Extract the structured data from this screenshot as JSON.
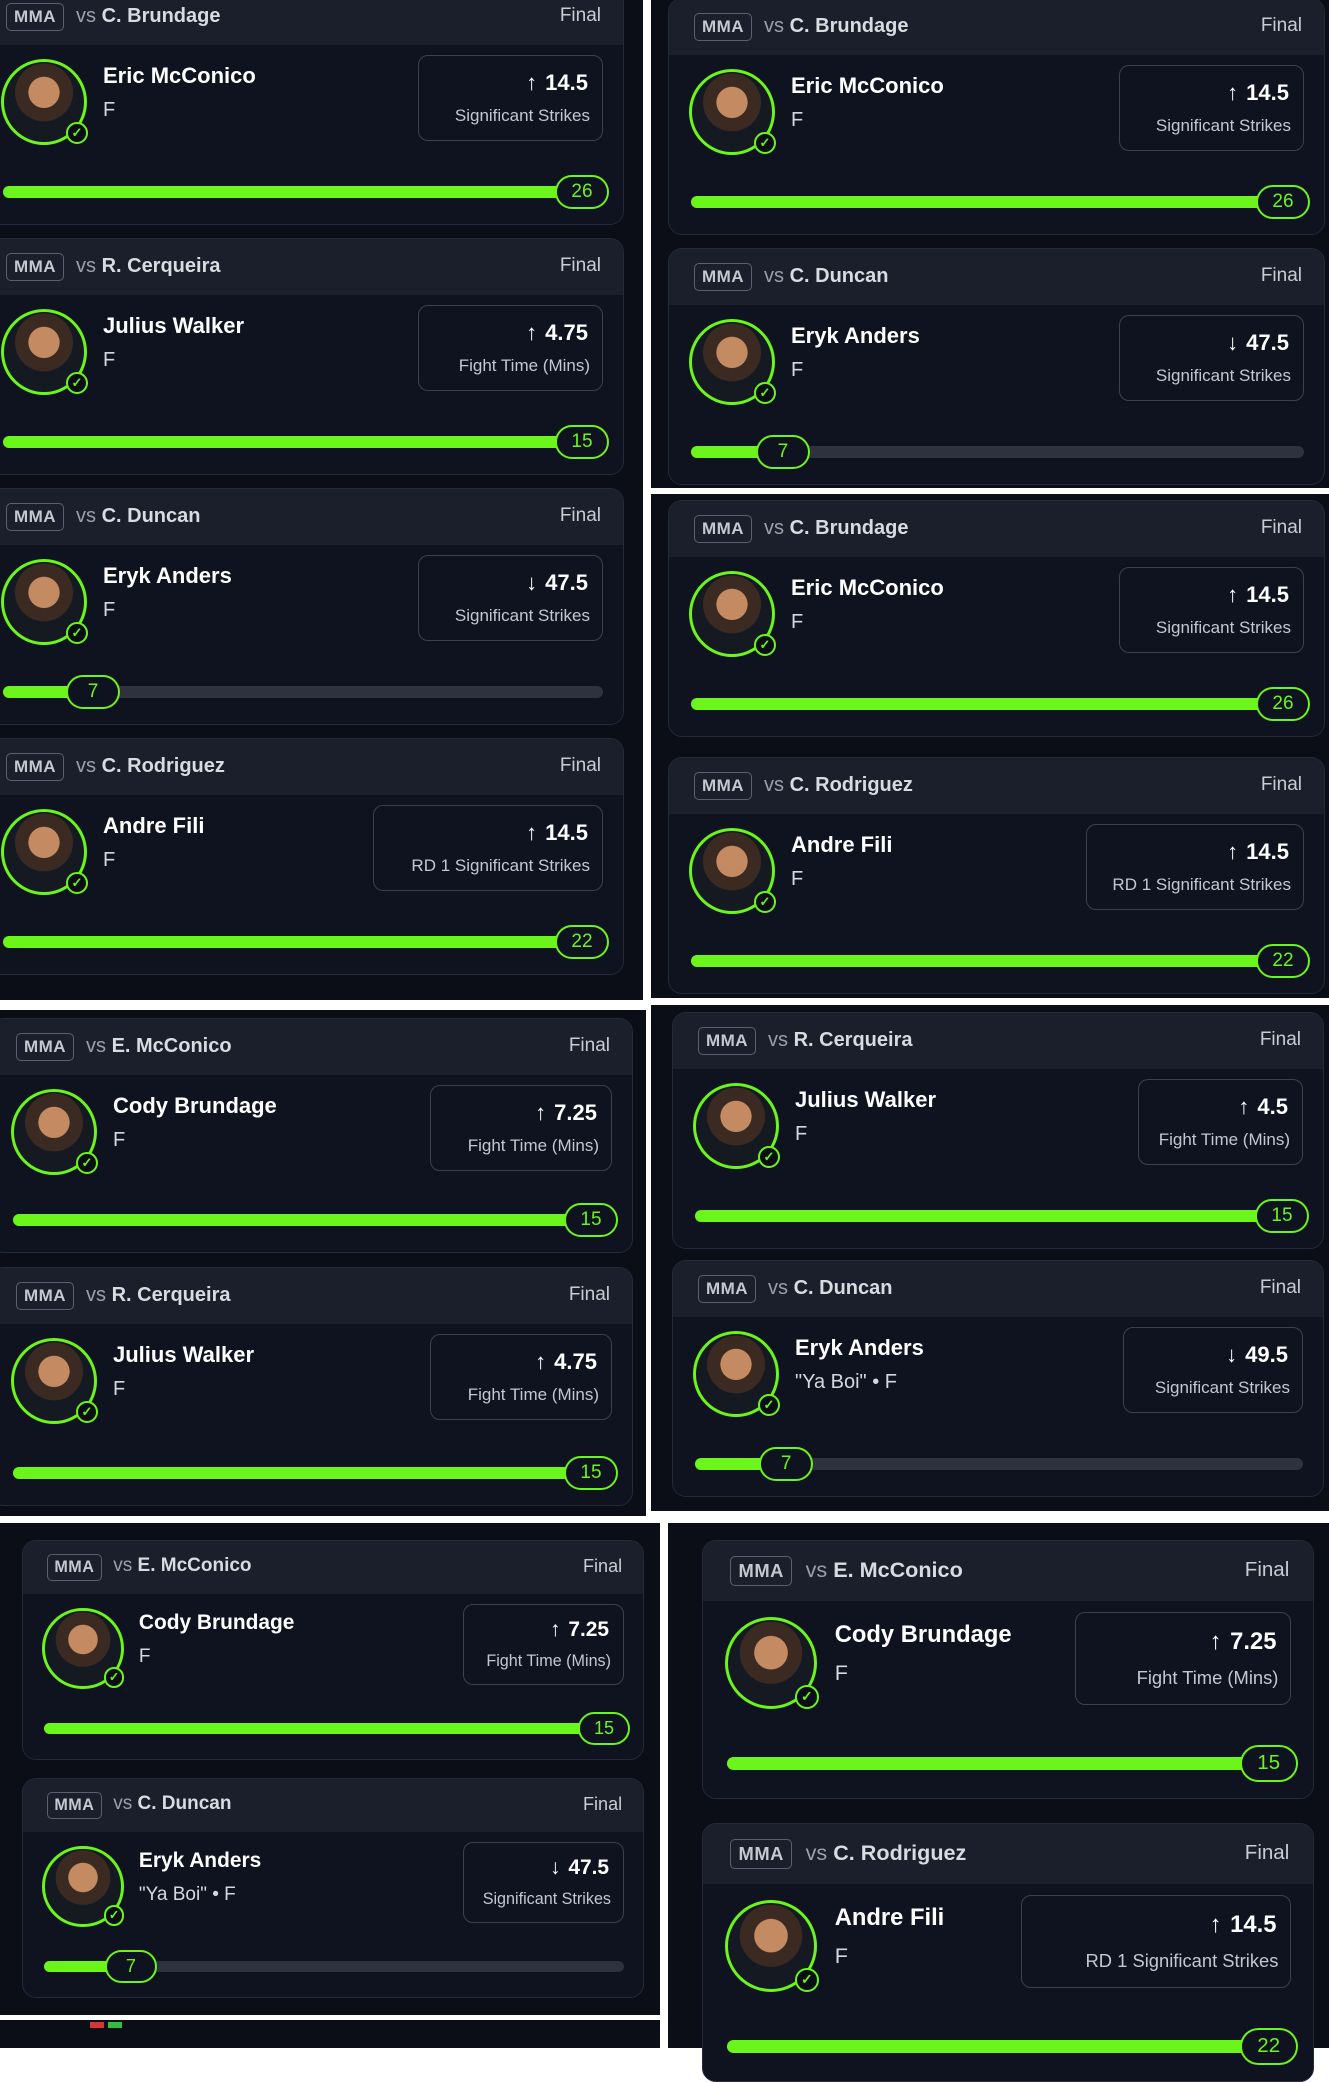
{
  "accent_color": "#6bf51a",
  "icons": {
    "over": "arrow-up-icon",
    "under": "arrow-down-icon",
    "check": "check-circle-icon"
  },
  "cards": [
    {
      "sport": "MMA",
      "vs_prefix": "vs",
      "opponent": "C. Brundage",
      "status": "Final",
      "player": "Eric McConico",
      "position": "F",
      "direction": "up",
      "line": "14.5",
      "stat": "Significant Strikes",
      "result": "26",
      "progress": 1.0
    },
    {
      "sport": "MMA",
      "vs_prefix": "vs",
      "opponent": "R. Cerqueira",
      "status": "Final",
      "player": "Julius Walker",
      "position": "F",
      "direction": "up",
      "line": "4.75",
      "stat": "Fight Time (Mins)",
      "result": "15",
      "progress": 1.0
    },
    {
      "sport": "MMA",
      "vs_prefix": "vs",
      "opponent": "C. Duncan",
      "status": "Final",
      "player": "Eryk Anders",
      "position": "F",
      "direction": "down",
      "line": "47.5",
      "stat": "Significant Strikes",
      "result": "7",
      "progress": 0.15
    },
    {
      "sport": "MMA",
      "vs_prefix": "vs",
      "opponent": "C. Rodriguez",
      "status": "Final",
      "player": "Andre Fili",
      "position": "F",
      "direction": "up",
      "line": "14.5",
      "stat": "RD 1 Significant Strikes",
      "result": "22",
      "progress": 1.0
    },
    {
      "sport": "MMA",
      "vs_prefix": "vs",
      "opponent": "C. Brundage",
      "status": "Final",
      "player": "Eric McConico",
      "position": "F",
      "direction": "up",
      "line": "14.5",
      "stat": "Significant Strikes",
      "result": "26",
      "progress": 1.0
    },
    {
      "sport": "MMA",
      "vs_prefix": "vs",
      "opponent": "C. Duncan",
      "status": "Final",
      "player": "Eryk Anders",
      "position": "F",
      "direction": "down",
      "line": "47.5",
      "stat": "Significant Strikes",
      "result": "7",
      "progress": 0.15
    },
    {
      "sport": "MMA",
      "vs_prefix": "vs",
      "opponent": "C. Brundage",
      "status": "Final",
      "player": "Eric McConico",
      "position": "F",
      "direction": "up",
      "line": "14.5",
      "stat": "Significant Strikes",
      "result": "26",
      "progress": 1.0
    },
    {
      "sport": "MMA",
      "vs_prefix": "vs",
      "opponent": "C. Rodriguez",
      "status": "Final",
      "player": "Andre Fili",
      "position": "F",
      "direction": "up",
      "line": "14.5",
      "stat": "RD 1 Significant Strikes",
      "result": "22",
      "progress": 1.0
    },
    {
      "sport": "MMA",
      "vs_prefix": "vs",
      "opponent": "E. McConico",
      "status": "Final",
      "player": "Cody Brundage",
      "position": "F",
      "direction": "up",
      "line": "7.25",
      "stat": "Fight Time (Mins)",
      "result": "15",
      "progress": 1.0
    },
    {
      "sport": "MMA",
      "vs_prefix": "vs",
      "opponent": "R. Cerqueira",
      "status": "Final",
      "player": "Julius Walker",
      "position": "F",
      "direction": "up",
      "line": "4.75",
      "stat": "Fight Time (Mins)",
      "result": "15",
      "progress": 1.0
    },
    {
      "sport": "MMA",
      "vs_prefix": "vs",
      "opponent": "R. Cerqueira",
      "status": "Final",
      "player": "Julius Walker",
      "position": "F",
      "direction": "up",
      "line": "4.5",
      "stat": "Fight Time (Mins)",
      "result": "15",
      "progress": 1.0
    },
    {
      "sport": "MMA",
      "vs_prefix": "vs",
      "opponent": "C. Duncan",
      "status": "Final",
      "player": "Eryk Anders",
      "position": "\"Ya Boi\" • F",
      "direction": "down",
      "line": "49.5",
      "stat": "Significant Strikes",
      "result": "7",
      "progress": 0.15
    },
    {
      "sport": "MMA",
      "vs_prefix": "vs",
      "opponent": "E. McConico",
      "status": "Final",
      "player": "Cody Brundage",
      "position": "F",
      "direction": "up",
      "line": "7.25",
      "stat": "Fight Time (Mins)",
      "result": "15",
      "progress": 1.0
    },
    {
      "sport": "MMA",
      "vs_prefix": "vs",
      "opponent": "C. Duncan",
      "status": "Final",
      "player": "Eryk Anders",
      "position": "\"Ya Boi\" • F",
      "direction": "down",
      "line": "47.5",
      "stat": "Significant Strikes",
      "result": "7",
      "progress": 0.15
    },
    {
      "sport": "MMA",
      "vs_prefix": "vs",
      "opponent": "E. McConico",
      "status": "Final",
      "player": "Cody Brundage",
      "position": "F",
      "direction": "up",
      "line": "7.25",
      "stat": "Fight Time (Mins)",
      "result": "15",
      "progress": 1.0
    },
    {
      "sport": "MMA",
      "vs_prefix": "vs",
      "opponent": "C. Rodriguez",
      "status": "Final",
      "player": "Andre Fili",
      "position": "F",
      "direction": "up",
      "line": "14.5",
      "stat": "RD 1 Significant Strikes",
      "result": "22",
      "progress": 1.0
    }
  ]
}
